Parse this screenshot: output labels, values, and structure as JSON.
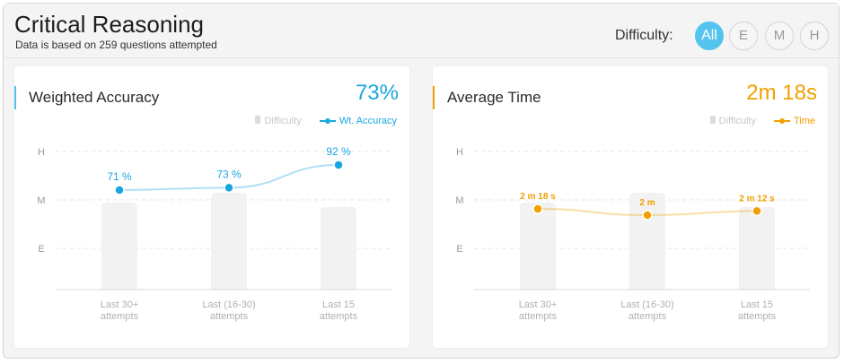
{
  "header": {
    "title": "Critical Reasoning",
    "subtitle": "Data is based on 259 questions attempted",
    "difficulty_label": "Difficulty:",
    "difficulty_options": [
      "All",
      "E",
      "M",
      "H"
    ],
    "difficulty_selected": "All",
    "accent_color": "#54c4ee"
  },
  "accuracy_card": {
    "title": "Weighted Accuracy",
    "value": "73%",
    "legend_bar": "Difficulty",
    "legend_line": "Wt. Accuracy",
    "line_color": "#1aa6e0",
    "chart_data": {
      "type": "bar+line",
      "categories": [
        [
          "Last 30+",
          "attempts"
        ],
        [
          "Last (16-30)",
          "attempts"
        ],
        [
          "Last 15",
          "attempts"
        ]
      ],
      "y_ticks": [
        "E",
        "M",
        "H"
      ],
      "difficulty_values": [
        1.85,
        2.05,
        1.75
      ],
      "series": [
        {
          "name": "Wt. Accuracy",
          "values": [
            71,
            73,
            92
          ],
          "labels": [
            "71 %",
            "73 %",
            "92 %"
          ]
        }
      ]
    }
  },
  "time_card": {
    "title": "Average Time",
    "value": "2m 18s",
    "legend_bar": "Difficulty",
    "legend_line": "Time",
    "line_color": "#f0a000",
    "chart_data": {
      "type": "bar+line",
      "categories": [
        [
          "Last 30+",
          "attempts"
        ],
        [
          "Last (16-30)",
          "attempts"
        ],
        [
          "Last 15",
          "attempts"
        ]
      ],
      "y_ticks": [
        "E",
        "M",
        "H"
      ],
      "difficulty_values": [
        1.85,
        2.05,
        1.75
      ],
      "series": [
        {
          "name": "Time",
          "values": [
            138,
            120,
            132
          ],
          "labels": [
            "2 m 18 s",
            "2 m",
            "2 m 12 s"
          ]
        }
      ]
    }
  }
}
